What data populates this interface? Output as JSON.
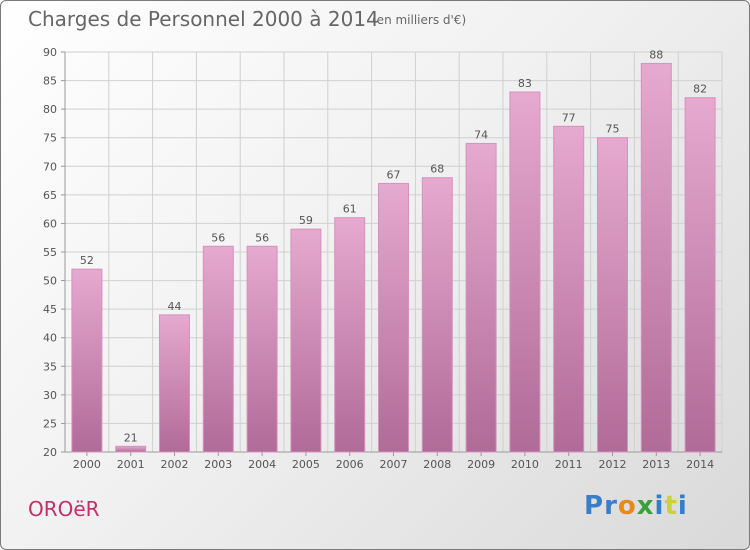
{
  "title": "Charges de Personnel 2000 à 2014",
  "subtitle": "(en milliers d'€)",
  "town": "OROëR",
  "logo": {
    "letters": [
      "P",
      "r",
      "o",
      "x",
      "i",
      "t",
      "i"
    ],
    "colors": [
      "#3a7dc9",
      "#3a7dc9",
      "#e88a1a",
      "#3aa13a",
      "#2f7fd0",
      "#c9d23a",
      "#2f7fd0"
    ]
  },
  "colors": {
    "bar_top": "#e6a9cf",
    "bar_bottom": "#b06b97",
    "town": "#c0306a",
    "text": "#666666"
  },
  "chart_data": {
    "type": "bar",
    "categories": [
      "2000",
      "2001",
      "2002",
      "2003",
      "2004",
      "2005",
      "2006",
      "2007",
      "2008",
      "2009",
      "2010",
      "2011",
      "2012",
      "2013",
      "2014"
    ],
    "values": [
      52,
      21,
      44,
      56,
      56,
      59,
      61,
      67,
      68,
      74,
      83,
      77,
      75,
      88,
      82
    ],
    "ylim": [
      20,
      90
    ],
    "yticks": [
      20,
      25,
      30,
      35,
      40,
      45,
      50,
      55,
      60,
      65,
      70,
      75,
      80,
      85,
      90
    ],
    "grid": true,
    "title": "Charges de Personnel 2000 à 2014",
    "xlabel": "",
    "ylabel": ""
  }
}
